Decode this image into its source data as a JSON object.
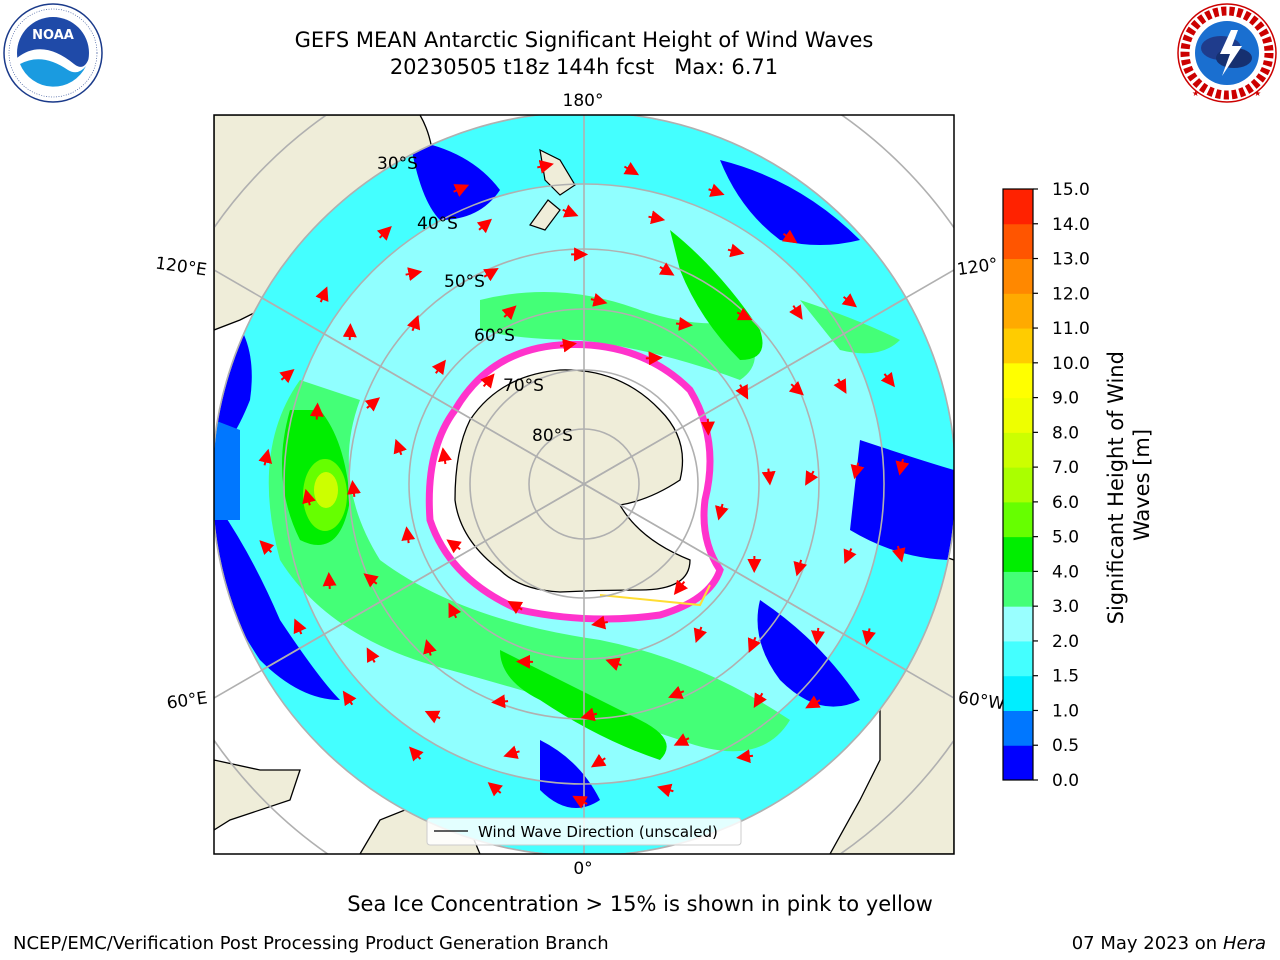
{
  "header": {
    "title": "GEFS MEAN Antarctic Significant Height of Wind Waves",
    "subtitle": "20230505 t18z 144h fcst   Max: 6.71"
  },
  "logos": {
    "noaa_text": "NOAA",
    "noaa_ring_text": "NATIONAL OCEANIC AND ATMOSPHERIC ADMINISTRATION · U.S. DEPARTMENT OF COMMERCE",
    "nws_ring_text": "NATIONAL WEATHER SERVICE"
  },
  "map": {
    "projection": "south polar stereographic",
    "meridian_labels": [
      "180°",
      "120°E",
      "120°",
      "60°E",
      "60°W",
      "0°"
    ],
    "parallel_labels": [
      "30°S",
      "40°S",
      "50°S",
      "60°S",
      "70°S",
      "80°S"
    ],
    "legend_label": "Wind Wave Direction (unscaled)",
    "vector_color": "#ff0000",
    "land_color": "#efedd9",
    "ice_color": "#ff33cc"
  },
  "colorbar": {
    "label": "Significant Height of Wind Waves [m]",
    "ticks": [
      "0.0",
      "0.5",
      "1.0",
      "1.5",
      "2.0",
      "3.0",
      "4.0",
      "5.0",
      "6.0",
      "7.0",
      "8.0",
      "9.0",
      "10.0",
      "11.0",
      "12.0",
      "13.0",
      "14.0",
      "15.0"
    ],
    "colors": [
      "#0000ff",
      "#0077ff",
      "#00eeff",
      "#44ffff",
      "#99ffff",
      "#44ff77",
      "#00ee00",
      "#66ff00",
      "#aaff00",
      "#ccff00",
      "#eeff00",
      "#ffff00",
      "#ffcc00",
      "#ffaa00",
      "#ff8800",
      "#ff5500",
      "#ff2200"
    ]
  },
  "note": "Sea Ice Concentration > 15% is shown in pink to yellow",
  "footer": {
    "left": "NCEP/EMC/Verification Post Processing Product Generation Branch",
    "right_date": "07 May 2023 on",
    "right_machine": "Hera"
  }
}
